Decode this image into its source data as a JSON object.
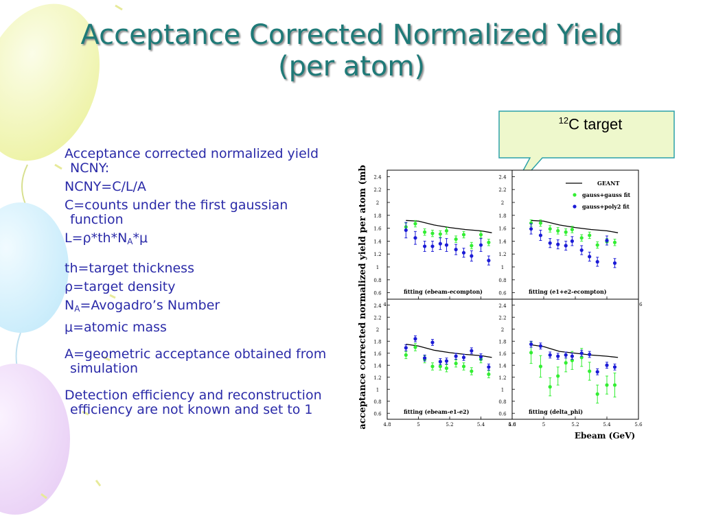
{
  "slide": {
    "title_line1": "Acceptance Corrected Normalized Yield",
    "title_line2": "(per atom)",
    "callout": {
      "sup": "12",
      "text": "C target"
    },
    "bullets": [
      {
        "text": "Acceptance corrected normalized yield NCNY:"
      },
      {
        "text": "NCNY=C/L/A"
      },
      {
        "text": "C=counts under the first gaussian function"
      }
    ],
    "l_def": {
      "prefix": "L=",
      "rho": "ρ",
      "mid": "*th*N",
      "sub": "A",
      "star": "*",
      "mu": "μ"
    },
    "defs": {
      "th": "th=target thickness",
      "rho_sym": "ρ",
      "rho_rest": "=target density",
      "na_n": "N",
      "na_sub": "A",
      "na_rest": "=Avogadro’s Number",
      "mu_sym": "μ",
      "mu_rest": "=atomic mass"
    },
    "a_def": "A=geometric acceptance obtained from simulation",
    "eff_note": "Detection efficiency and reconstruction efficiency are not known and set to 1"
  },
  "colors": {
    "title": "#1f7a78",
    "text": "#2a2aa8",
    "callout_bg": "#eef8cc",
    "callout_border": "#2aa0a8",
    "green": "#33ee33",
    "blue": "#1b1bd6",
    "line": "#000000"
  },
  "chart_data": {
    "type": "scatter",
    "ylabel": "acceptance corrected normalized yield per atom (mb)",
    "xlabel": "Ebeam (GeV)",
    "xlim": [
      4.8,
      5.6
    ],
    "ylim": [
      0.5,
      2.5
    ],
    "xticks": [
      "4.8",
      "5",
      "5.2",
      "5.4",
      "5.6"
    ],
    "yticks": [
      "0.6",
      "0.8",
      "1",
      "1.2",
      "1.4",
      "1.6",
      "1.8",
      "2",
      "2.2",
      "2.4"
    ],
    "legend": [
      "GEANT",
      "gauss+gauss fit",
      "gauss+poly2 fit"
    ],
    "legend_position": "top-right of upper-right panel",
    "panels": [
      {
        "label": "fitting (ebeam-ecompton)",
        "geant": {
          "x": [
            4.92,
            5.0,
            5.1,
            5.2,
            5.3,
            5.4,
            5.47
          ],
          "y": [
            1.72,
            1.71,
            1.65,
            1.61,
            1.58,
            1.56,
            1.53
          ]
        },
        "series": [
          {
            "name": "gauss+gauss fit",
            "x": [
              4.92,
              4.98,
              5.04,
              5.09,
              5.14,
              5.18,
              5.24,
              5.29,
              5.34,
              5.4,
              5.45
            ],
            "y": [
              1.62,
              1.67,
              1.54,
              1.52,
              1.51,
              1.56,
              1.43,
              1.5,
              1.33,
              1.5,
              1.38
            ],
            "err": [
              0.06,
              0.05,
              0.05,
              0.05,
              0.05,
              0.05,
              0.05,
              0.05,
              0.05,
              0.05,
              0.05
            ]
          },
          {
            "name": "gauss+poly2 fit",
            "x": [
              4.92,
              4.98,
              5.04,
              5.09,
              5.14,
              5.18,
              5.24,
              5.29,
              5.34,
              5.4,
              5.45
            ],
            "y": [
              1.57,
              1.45,
              1.32,
              1.32,
              1.36,
              1.34,
              1.27,
              1.22,
              1.17,
              1.34,
              1.1
            ],
            "err": [
              0.12,
              0.1,
              0.08,
              0.08,
              0.09,
              0.1,
              0.08,
              0.07,
              0.08,
              0.1,
              0.07
            ]
          }
        ]
      },
      {
        "label": "fitting (e1+e2-ecompton)",
        "geant": {
          "x": [
            4.92,
            5.0,
            5.1,
            5.2,
            5.3,
            5.4,
            5.47
          ],
          "y": [
            1.72,
            1.71,
            1.65,
            1.61,
            1.58,
            1.56,
            1.53
          ]
        },
        "series": [
          {
            "name": "gauss+gauss fit",
            "x": [
              4.92,
              4.98,
              5.04,
              5.09,
              5.14,
              5.18,
              5.24,
              5.29,
              5.34,
              5.4,
              5.45
            ],
            "y": [
              1.68,
              1.68,
              1.59,
              1.56,
              1.54,
              1.58,
              1.45,
              1.49,
              1.34,
              1.39,
              1.38
            ],
            "err": [
              0.05,
              0.05,
              0.05,
              0.05,
              0.05,
              0.05,
              0.05,
              0.05,
              0.05,
              0.05,
              0.05
            ]
          },
          {
            "name": "gauss+poly2 fit",
            "x": [
              4.92,
              4.98,
              5.04,
              5.09,
              5.14,
              5.18,
              5.24,
              5.29,
              5.34,
              5.4,
              5.45
            ],
            "y": [
              1.59,
              1.49,
              1.37,
              1.35,
              1.33,
              1.4,
              1.26,
              1.16,
              1.08,
              1.41,
              1.06
            ],
            "err": [
              0.08,
              0.08,
              0.07,
              0.07,
              0.07,
              0.07,
              0.07,
              0.07,
              0.07,
              0.07,
              0.07
            ]
          }
        ]
      },
      {
        "label": "fitting (ebeam-e1-e2)",
        "geant": {
          "x": [
            4.92,
            5.0,
            5.1,
            5.2,
            5.3,
            5.4,
            5.47
          ],
          "y": [
            1.75,
            1.72,
            1.65,
            1.61,
            1.58,
            1.56,
            1.53
          ]
        },
        "series": [
          {
            "name": "gauss+gauss fit",
            "x": [
              4.92,
              4.98,
              5.04,
              5.09,
              5.14,
              5.18,
              5.24,
              5.29,
              5.34,
              5.4,
              5.45
            ],
            "y": [
              1.57,
              1.7,
              1.5,
              1.38,
              1.38,
              1.35,
              1.43,
              1.38,
              1.3,
              1.5,
              1.25
            ],
            "err": [
              0.06,
              0.06,
              0.06,
              0.06,
              0.06,
              0.06,
              0.06,
              0.06,
              0.06,
              0.06,
              0.06
            ]
          },
          {
            "name": "gauss+poly2 fit",
            "x": [
              4.92,
              4.98,
              5.04,
              5.09,
              5.14,
              5.18,
              5.24,
              5.29,
              5.34,
              5.4,
              5.45
            ],
            "y": [
              1.69,
              1.84,
              1.52,
              1.78,
              1.46,
              1.47,
              1.55,
              1.53,
              1.64,
              1.54,
              1.37
            ],
            "err": [
              0.05,
              0.05,
              0.05,
              0.05,
              0.05,
              0.05,
              0.05,
              0.05,
              0.05,
              0.05,
              0.05
            ]
          }
        ]
      },
      {
        "label": "fitting (delta_phi)",
        "geant": {
          "x": [
            4.92,
            5.0,
            5.1,
            5.2,
            5.3,
            5.4,
            5.47
          ],
          "y": [
            1.74,
            1.71,
            1.63,
            1.6,
            1.57,
            1.55,
            1.53
          ]
        },
        "series": [
          {
            "name": "gauss+gauss fit",
            "x": [
              4.92,
              4.98,
              5.04,
              5.09,
              5.14,
              5.18,
              5.24,
              5.29,
              5.34,
              5.4,
              5.45
            ],
            "y": [
              1.61,
              1.38,
              1.04,
              1.22,
              1.44,
              1.48,
              1.53,
              1.3,
              0.92,
              1.07,
              1.07
            ],
            "err": [
              0.18,
              0.18,
              0.15,
              0.15,
              0.15,
              0.15,
              0.15,
              0.15,
              0.15,
              0.15,
              0.2
            ]
          },
          {
            "name": "gauss+poly2 fit",
            "x": [
              4.92,
              4.98,
              5.04,
              5.09,
              5.14,
              5.18,
              5.24,
              5.29,
              5.34,
              5.4,
              5.45
            ],
            "y": [
              1.75,
              1.72,
              1.57,
              1.55,
              1.57,
              1.55,
              1.6,
              1.58,
              1.29,
              1.4,
              1.37
            ],
            "err": [
              0.05,
              0.05,
              0.05,
              0.05,
              0.05,
              0.05,
              0.05,
              0.05,
              0.05,
              0.05,
              0.05
            ]
          }
        ]
      }
    ]
  }
}
